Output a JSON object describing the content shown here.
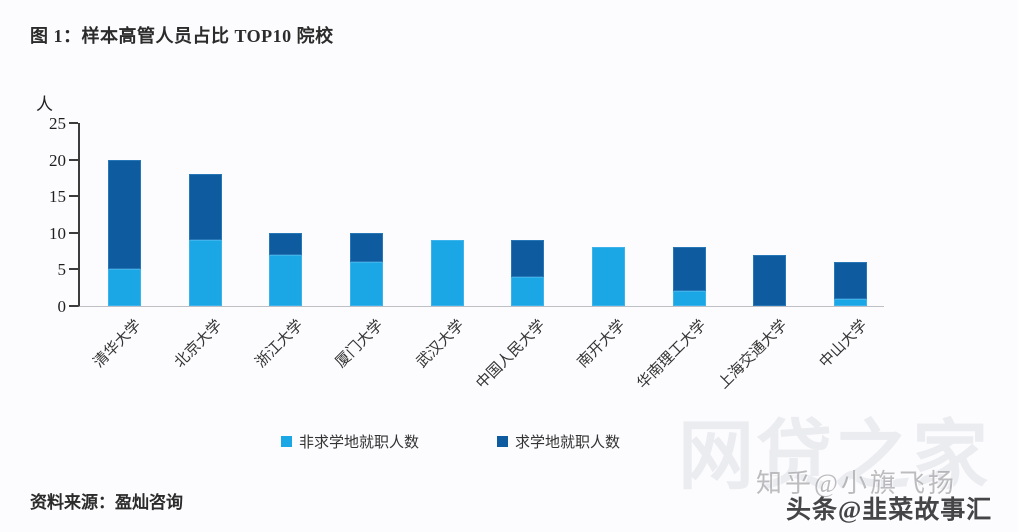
{
  "figure_title": "图 1：样本高管人员占比 TOP10 院校",
  "chart_data": {
    "type": "bar",
    "stacked": true,
    "title": "图 1：样本高管人员占比 TOP10 院校",
    "unit_label": "人",
    "xlabel": "",
    "ylabel": "人",
    "ylim": [
      0,
      25
    ],
    "yticks": [
      0,
      5,
      10,
      15,
      20,
      25
    ],
    "grid": false,
    "legend_position": "bottom",
    "categories": [
      "清华大学",
      "北京大学",
      "浙江大学",
      "厦门大学",
      "武汉大学",
      "中国人民大学",
      "南开大学",
      "华南理工大学",
      "上海交通大学",
      "中山大学"
    ],
    "series": [
      {
        "name": "非求学地就职人数",
        "color": "#1BA6E6",
        "values": [
          5,
          9,
          7,
          6,
          9,
          4,
          8,
          2,
          0,
          1
        ]
      },
      {
        "name": "求学地就职人数",
        "color": "#0E5C9F",
        "values": [
          15,
          9,
          3,
          4,
          0,
          5,
          0,
          6,
          7,
          5
        ]
      }
    ],
    "totals": [
      20,
      18,
      10,
      10,
      9,
      9,
      8,
      8,
      7,
      6
    ]
  },
  "source_line": "资料来源：盈灿咨询",
  "watermarks": {
    "brand": "网贷之家",
    "overlay_light": "知乎@小旗飞扬",
    "overlay_dark": "头条@韭菜故事汇"
  },
  "colors": {
    "light_series": "#1BA6E6",
    "dark_series": "#0E5C9F",
    "axis": "#3c3c3c",
    "baseline": "#bfc0c6",
    "text": "#2b2b2b"
  }
}
